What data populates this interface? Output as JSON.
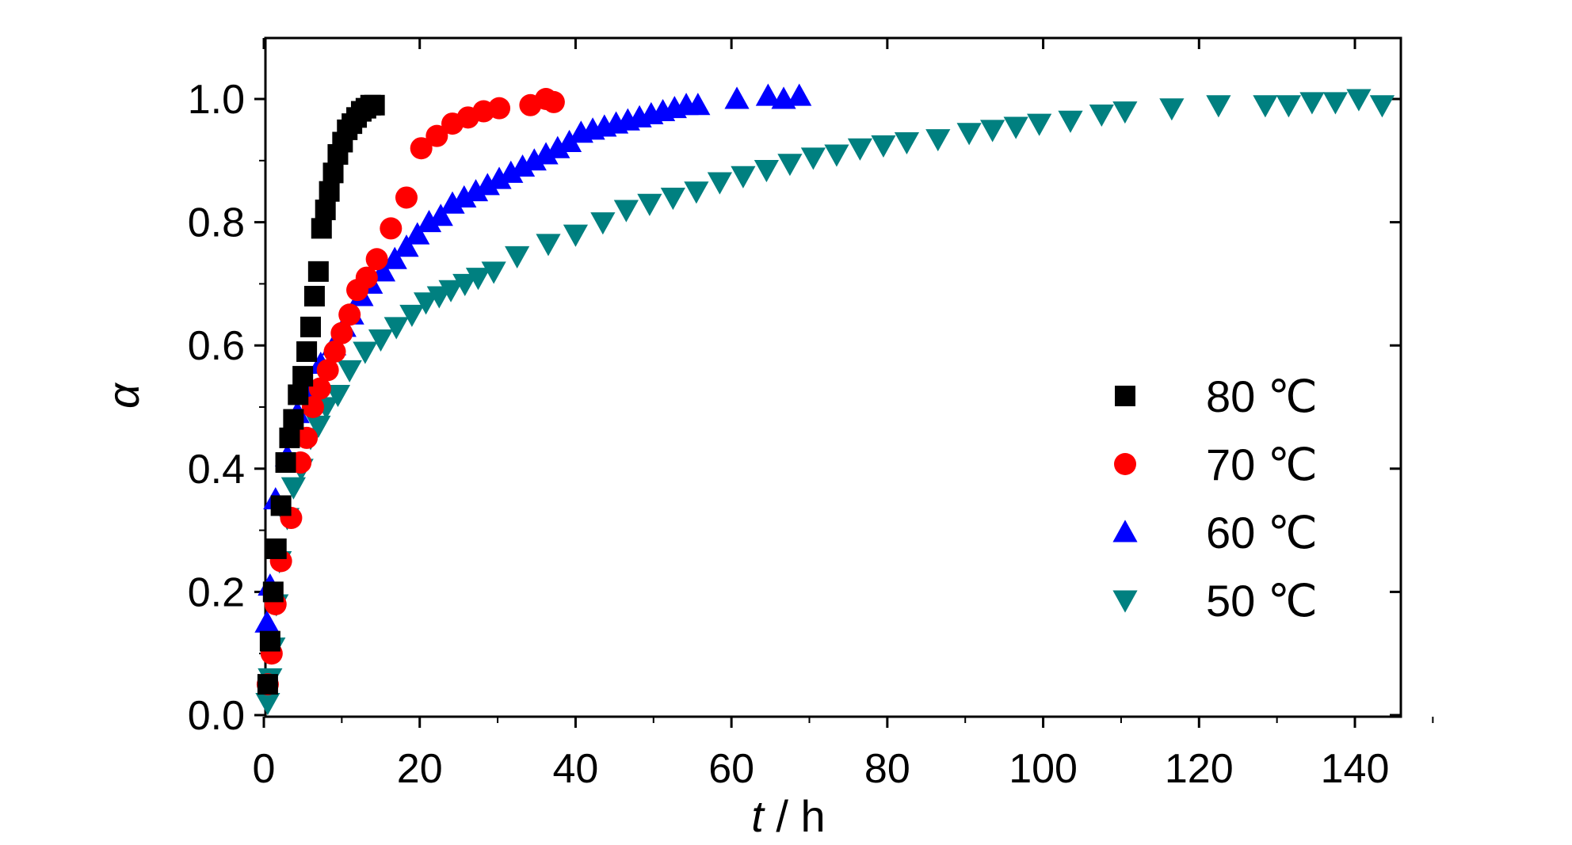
{
  "chart_data": {
    "type": "scatter",
    "xlabel": "t / h",
    "ylabel": "α",
    "xlim": [
      0,
      150
    ],
    "ylim": [
      0,
      1.1
    ],
    "xticks": [
      0,
      20,
      40,
      60,
      80,
      100,
      120,
      140
    ],
    "yticks": [
      0.0,
      0.2,
      0.4,
      0.6,
      0.8,
      1.0
    ],
    "xtick_labels": [
      "0",
      "20",
      "40",
      "60",
      "80",
      "100",
      "120",
      "140"
    ],
    "ytick_labels": [
      "0.0",
      "0.2",
      "0.4",
      "0.6",
      "0.8",
      "1.0"
    ],
    "grid": false,
    "legend_position": "right",
    "series": [
      {
        "name": "80 ℃",
        "marker": "square",
        "color": "#000000",
        "points": [
          [
            0.5,
            0.05
          ],
          [
            0.8,
            0.12
          ],
          [
            1.2,
            0.2
          ],
          [
            1.6,
            0.27
          ],
          [
            2.2,
            0.34
          ],
          [
            2.8,
            0.41
          ],
          [
            3.3,
            0.45
          ],
          [
            3.8,
            0.48
          ],
          [
            4.4,
            0.52
          ],
          [
            5.0,
            0.55
          ],
          [
            5.5,
            0.59
          ],
          [
            6.0,
            0.63
          ],
          [
            6.5,
            0.68
          ],
          [
            7.0,
            0.72
          ],
          [
            7.4,
            0.79
          ],
          [
            7.9,
            0.82
          ],
          [
            8.4,
            0.85
          ],
          [
            8.9,
            0.88
          ],
          [
            9.5,
            0.91
          ],
          [
            10.1,
            0.93
          ],
          [
            10.7,
            0.95
          ],
          [
            11.3,
            0.96
          ],
          [
            11.9,
            0.97
          ],
          [
            12.5,
            0.98
          ],
          [
            13.1,
            0.985
          ],
          [
            13.7,
            0.99
          ],
          [
            14.2,
            0.99
          ]
        ]
      },
      {
        "name": "70 ℃",
        "marker": "circle",
        "color": "#ff0000",
        "points": [
          [
            0.5,
            0.05
          ],
          [
            1.0,
            0.1
          ],
          [
            1.5,
            0.18
          ],
          [
            2.2,
            0.25
          ],
          [
            3.5,
            0.32
          ],
          [
            4.7,
            0.41
          ],
          [
            5.5,
            0.45
          ],
          [
            6.3,
            0.5
          ],
          [
            7.2,
            0.53
          ],
          [
            8.2,
            0.56
          ],
          [
            9.1,
            0.59
          ],
          [
            10.0,
            0.62
          ],
          [
            11.0,
            0.65
          ],
          [
            12.0,
            0.69
          ],
          [
            13.2,
            0.71
          ],
          [
            14.5,
            0.74
          ],
          [
            16.3,
            0.79
          ],
          [
            18.3,
            0.84
          ],
          [
            20.2,
            0.92
          ],
          [
            22.2,
            0.94
          ],
          [
            24.2,
            0.96
          ],
          [
            26.2,
            0.97
          ],
          [
            28.2,
            0.98
          ],
          [
            30.2,
            0.985
          ],
          [
            34.2,
            0.99
          ],
          [
            36.2,
            1.0
          ],
          [
            37.2,
            0.995
          ]
        ]
      },
      {
        "name": "60 ℃",
        "marker": "triangle-up",
        "color": "#0000ff",
        "points": [
          [
            0.4,
            0.15
          ],
          [
            0.8,
            0.21
          ],
          [
            1.5,
            0.35
          ],
          [
            3.0,
            0.42
          ],
          [
            4.3,
            0.49
          ],
          [
            5.7,
            0.53
          ],
          [
            7.3,
            0.57
          ],
          [
            9.0,
            0.6
          ],
          [
            10.3,
            0.63
          ],
          [
            11.3,
            0.65
          ],
          [
            12.5,
            0.68
          ],
          [
            13.7,
            0.7
          ],
          [
            15.3,
            0.72
          ],
          [
            16.8,
            0.74
          ],
          [
            18.3,
            0.76
          ],
          [
            19.7,
            0.78
          ],
          [
            21.2,
            0.8
          ],
          [
            22.7,
            0.81
          ],
          [
            24.2,
            0.83
          ],
          [
            25.7,
            0.84
          ],
          [
            27.2,
            0.85
          ],
          [
            28.7,
            0.86
          ],
          [
            30.2,
            0.87
          ],
          [
            31.7,
            0.88
          ],
          [
            33.2,
            0.89
          ],
          [
            34.7,
            0.9
          ],
          [
            36.2,
            0.91
          ],
          [
            37.7,
            0.92
          ],
          [
            39.2,
            0.93
          ],
          [
            40.7,
            0.945
          ],
          [
            42.2,
            0.95
          ],
          [
            43.7,
            0.955
          ],
          [
            45.2,
            0.96
          ],
          [
            46.7,
            0.965
          ],
          [
            48.2,
            0.97
          ],
          [
            49.7,
            0.975
          ],
          [
            51.2,
            0.98
          ],
          [
            52.7,
            0.985
          ],
          [
            54.2,
            0.99
          ],
          [
            55.7,
            0.99
          ],
          [
            60.7,
            1.0
          ],
          [
            64.7,
            1.005
          ],
          [
            66.7,
            1.0
          ],
          [
            68.7,
            1.005
          ]
        ]
      },
      {
        "name": "50 ℃",
        "marker": "triangle-down",
        "color": "#008080",
        "points": [
          [
            0.5,
            0.02
          ],
          [
            0.8,
            0.06
          ],
          [
            1.2,
            0.11
          ],
          [
            1.6,
            0.18
          ],
          [
            2.0,
            0.25
          ],
          [
            3.0,
            0.32
          ],
          [
            3.8,
            0.37
          ],
          [
            4.8,
            0.4
          ],
          [
            6.0,
            0.45
          ],
          [
            7.0,
            0.47
          ],
          [
            8.0,
            0.5
          ],
          [
            9.5,
            0.52
          ],
          [
            11.0,
            0.56
          ],
          [
            13.0,
            0.59
          ],
          [
            15.0,
            0.61
          ],
          [
            17.0,
            0.63
          ],
          [
            19.0,
            0.65
          ],
          [
            20.8,
            0.67
          ],
          [
            22.5,
            0.68
          ],
          [
            24.0,
            0.69
          ],
          [
            25.8,
            0.7
          ],
          [
            27.5,
            0.71
          ],
          [
            29.5,
            0.72
          ],
          [
            32.5,
            0.745
          ],
          [
            36.5,
            0.765
          ],
          [
            40.0,
            0.78
          ],
          [
            43.5,
            0.8
          ],
          [
            46.5,
            0.82
          ],
          [
            49.5,
            0.83
          ],
          [
            52.5,
            0.84
          ],
          [
            55.5,
            0.85
          ],
          [
            58.5,
            0.865
          ],
          [
            61.5,
            0.875
          ],
          [
            64.5,
            0.885
          ],
          [
            67.5,
            0.895
          ],
          [
            70.5,
            0.905
          ],
          [
            73.5,
            0.91
          ],
          [
            76.5,
            0.92
          ],
          [
            79.5,
            0.925
          ],
          [
            82.5,
            0.93
          ],
          [
            86.5,
            0.935
          ],
          [
            90.5,
            0.945
          ],
          [
            93.5,
            0.95
          ],
          [
            96.5,
            0.955
          ],
          [
            99.5,
            0.96
          ],
          [
            103.5,
            0.965
          ],
          [
            107.5,
            0.975
          ],
          [
            110.5,
            0.98
          ],
          [
            116.5,
            0.985
          ],
          [
            122.5,
            0.99
          ],
          [
            128.5,
            0.99
          ],
          [
            131.5,
            0.99
          ],
          [
            134.5,
            0.995
          ],
          [
            137.5,
            0.995
          ],
          [
            140.5,
            1.0
          ],
          [
            143.5,
            0.99
          ]
        ]
      }
    ]
  }
}
